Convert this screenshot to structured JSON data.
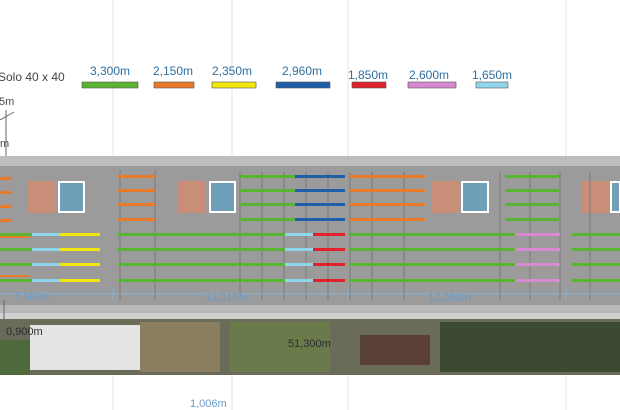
{
  "profile": "Solo 40 x 40",
  "legend": [
    {
      "label": "3,300m",
      "color": "#5ab432"
    },
    {
      "label": "2,150m",
      "color": "#e87a2a"
    },
    {
      "label": "2,350m",
      "color": "#f2e60c"
    },
    {
      "label": "2,960m",
      "color": "#1f5fa8"
    },
    {
      "label": "1,850m",
      "color": "#e0222a"
    },
    {
      "label": "2,600m",
      "color": "#d88ad0"
    },
    {
      "label": "1,650m",
      "color": "#8fd6ec"
    }
  ],
  "left_labels": {
    "top": "5m",
    "mid": "m"
  },
  "segments": [
    "7,162m",
    "13,318m",
    "12,292m"
  ],
  "bottom": {
    "left": "0,900m",
    "total": "51,300m",
    "lower": "1,006m"
  }
}
